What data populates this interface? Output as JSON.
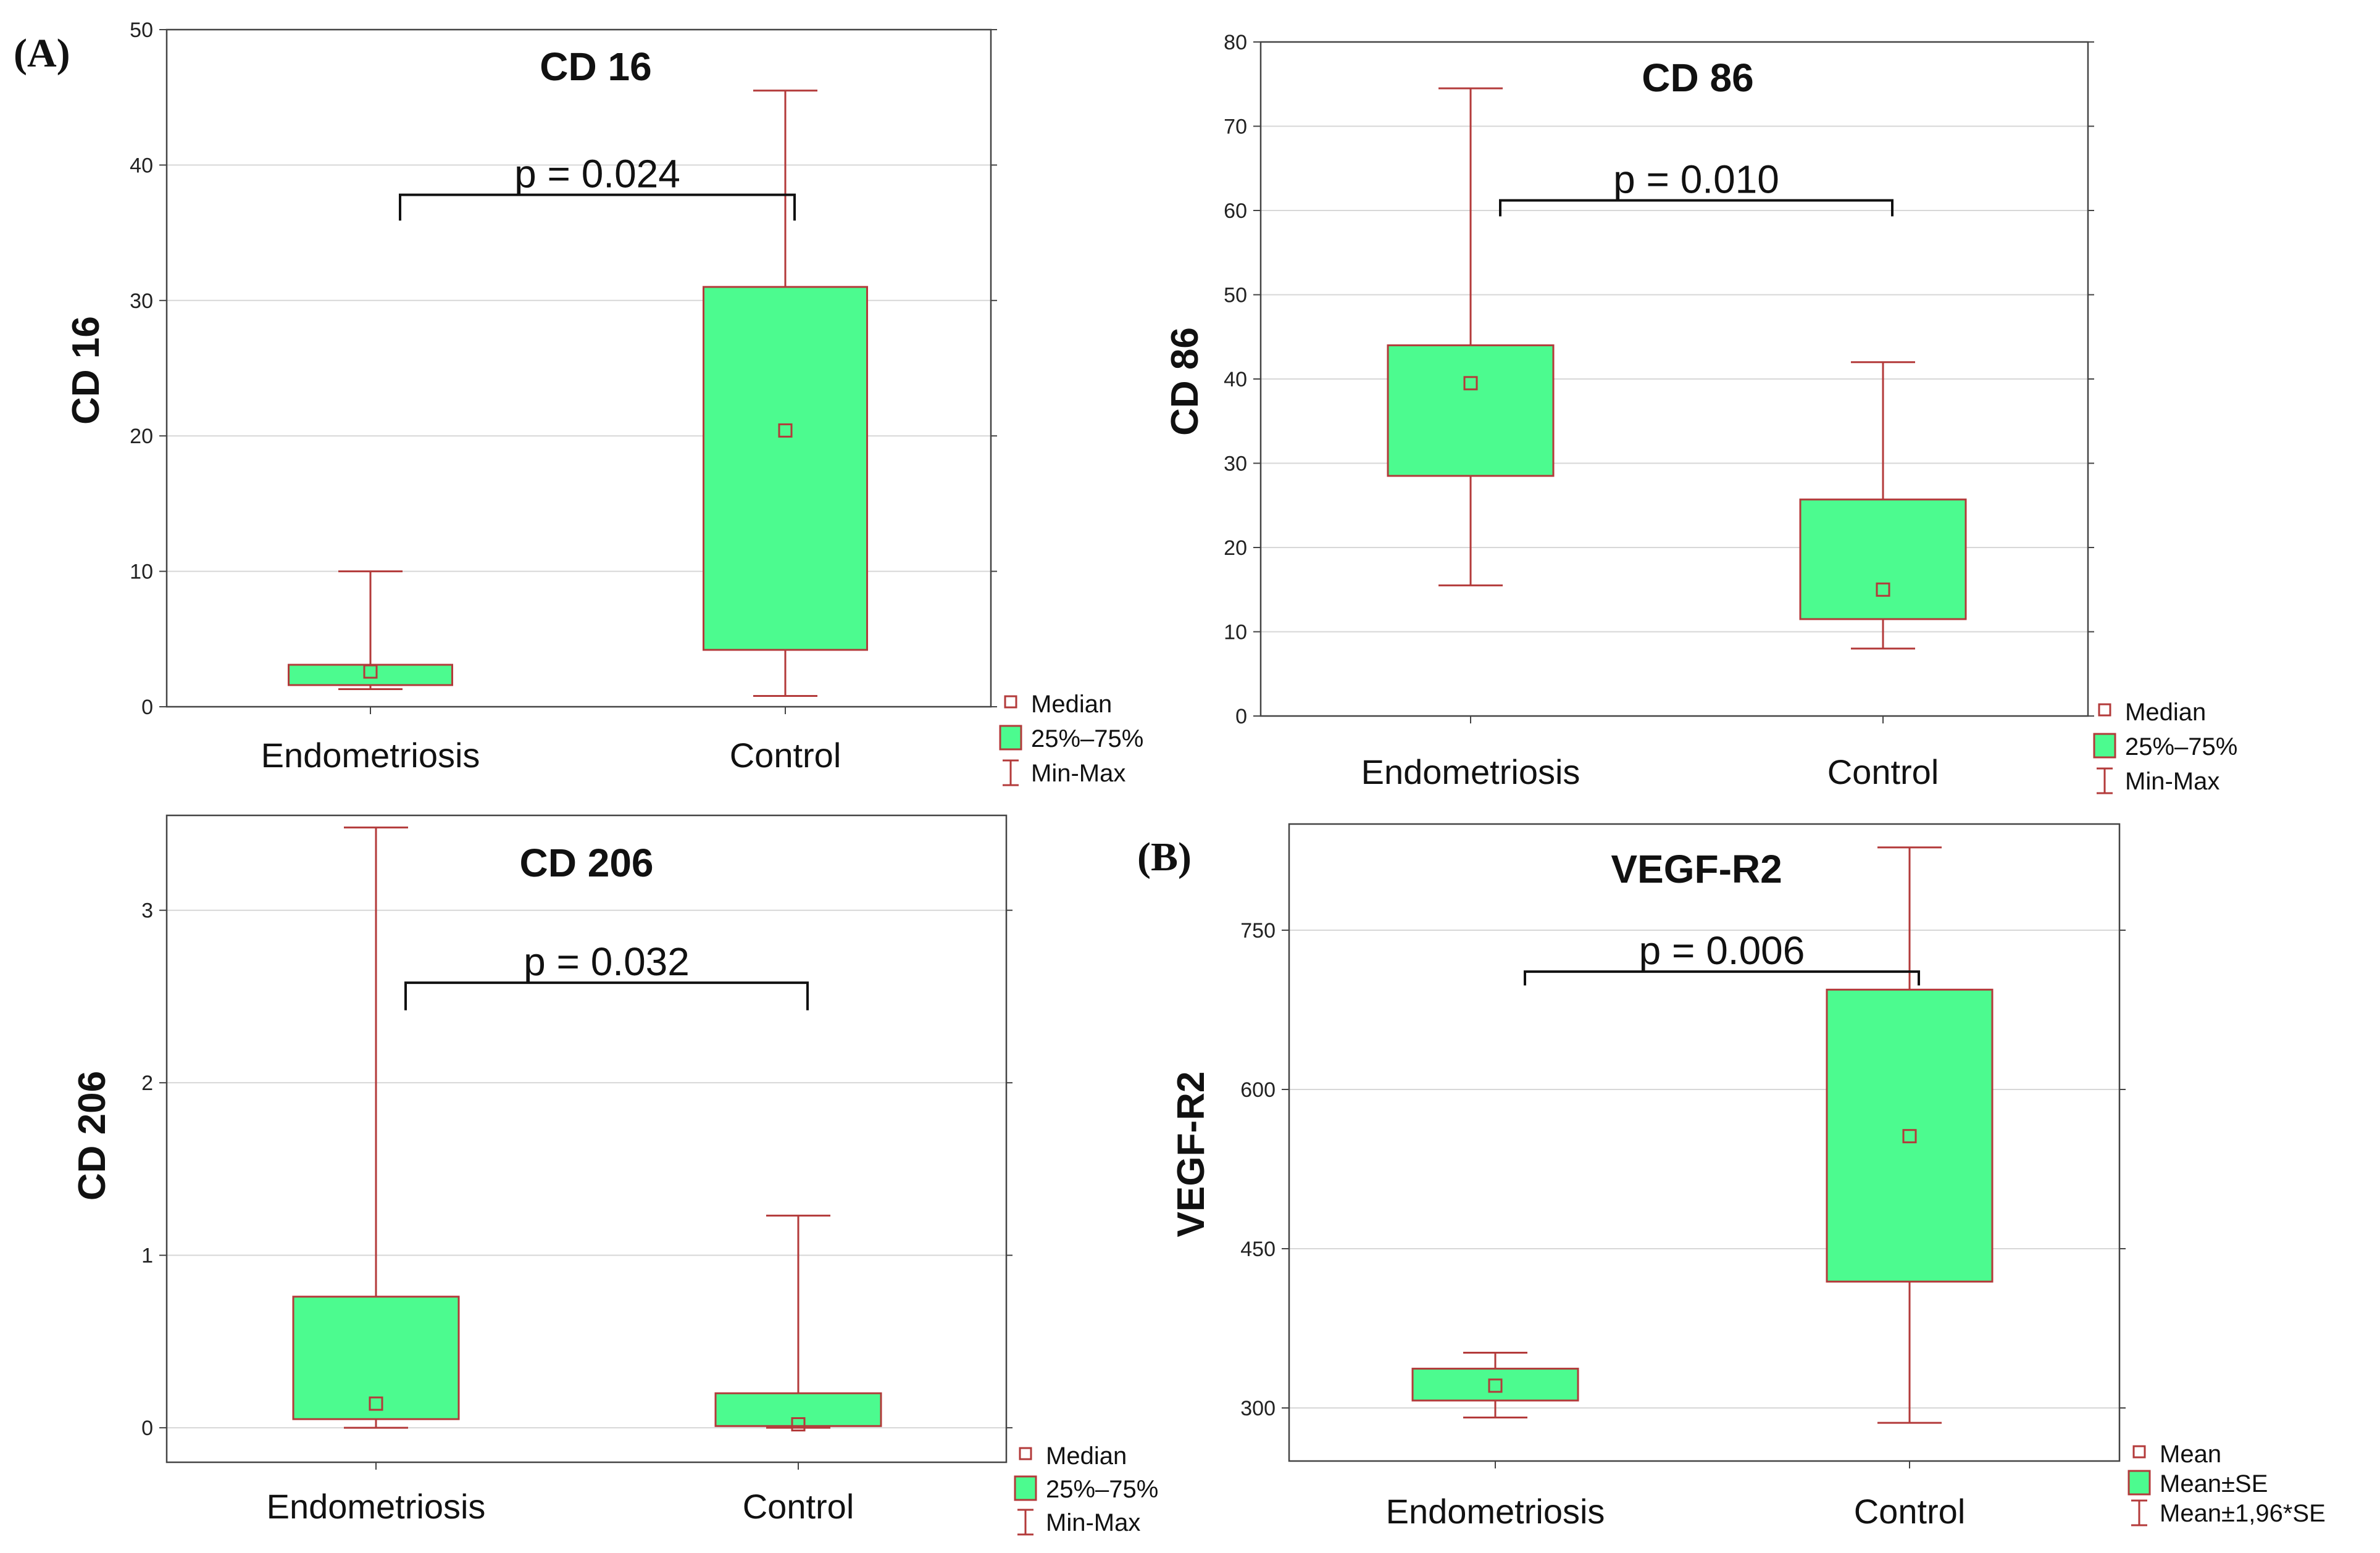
{
  "chart_data": [
    {
      "type": "boxplot",
      "panel_label": "(A)",
      "title": "CD 16",
      "ylabel": "CD 16",
      "ylim": [
        0,
        50
      ],
      "yticks": [
        0,
        10,
        20,
        30,
        40,
        50
      ],
      "ytick_labels": [
        "0",
        "10",
        "20",
        "30",
        "40",
        "50"
      ],
      "categories": [
        "Endometriosis",
        "Control"
      ],
      "boxes": [
        {
          "min": 1.3,
          "q1": 1.6,
          "median": 2.6,
          "q3": 3.1,
          "max": 10.0
        },
        {
          "min": 0.8,
          "q1": 4.2,
          "median": 20.4,
          "q3": 31.0,
          "max": 45.5
        }
      ],
      "pvalue_label": "p = 0.024",
      "bracket_y": 37.8,
      "bracket_drop": 1.9,
      "legend": [
        "Median",
        "25%–75%",
        "Min-Max"
      ]
    },
    {
      "type": "boxplot",
      "panel_label": "",
      "title": "CD 86",
      "ylabel": "CD 86",
      "ylim": [
        0,
        80
      ],
      "yticks": [
        0,
        10,
        20,
        30,
        40,
        50,
        60,
        70,
        80
      ],
      "ytick_labels": [
        "0",
        "10",
        "20",
        "30",
        "40",
        "50",
        "60",
        "70",
        "80"
      ],
      "categories": [
        "Endometriosis",
        "Control"
      ],
      "boxes": [
        {
          "min": 15.5,
          "q1": 28.5,
          "median": 39.5,
          "q3": 44.0,
          "max": 74.5
        },
        {
          "min": 8.0,
          "q1": 11.5,
          "median": 15.0,
          "q3": 25.7,
          "max": 42.0
        }
      ],
      "pvalue_label": "p = 0.010",
      "bracket_y": 61.2,
      "bracket_drop": 1.9,
      "legend": [
        "Median",
        "25%–75%",
        "Min-Max"
      ]
    },
    {
      "type": "boxplot",
      "panel_label": "",
      "title": "CD 206",
      "ylabel": "CD 206",
      "ylim": [
        -0.2,
        3.55
      ],
      "yticks": [
        0,
        1,
        2,
        3
      ],
      "ytick_labels": [
        "0",
        "1",
        "2",
        "3"
      ],
      "categories": [
        "Endometriosis",
        "Control"
      ],
      "boxes": [
        {
          "min": 0.0,
          "q1": 0.05,
          "median": 0.14,
          "q3": 0.76,
          "max": 3.48
        },
        {
          "min": 0.0,
          "q1": 0.01,
          "median": 0.02,
          "q3": 0.2,
          "max": 1.23
        }
      ],
      "pvalue_label": "p = 0.032",
      "bracket_y": 2.58,
      "bracket_drop": 0.16,
      "legend": [
        "Median",
        "25%–75%",
        "Min-Max"
      ]
    },
    {
      "type": "boxplot",
      "panel_label": "(B)",
      "title": "VEGF-R2",
      "ylabel": "VEGF-R2",
      "ylim": [
        250,
        850
      ],
      "yticks": [
        300,
        450,
        600,
        750
      ],
      "ytick_labels": [
        "300",
        "450",
        "600",
        "750"
      ],
      "categories": [
        "Endometriosis",
        "Control"
      ],
      "boxes": [
        {
          "min": 291,
          "q1": 307,
          "median": 321,
          "q3": 337,
          "max": 352
        },
        {
          "min": 286,
          "q1": 419,
          "median": 556,
          "q3": 694,
          "max": 828
        }
      ],
      "pvalue_label": "p = 0.006",
      "bracket_y": 711,
      "bracket_drop": 13,
      "legend": [
        "Mean",
        "Mean±SE",
        "Mean±1,96*SE"
      ]
    }
  ],
  "colors": {
    "box_fill": "#4cfb8f",
    "box_stroke": "#b33a3a",
    "frame": "#444444",
    "grid": "#d7d7d7",
    "text": "#111111"
  }
}
